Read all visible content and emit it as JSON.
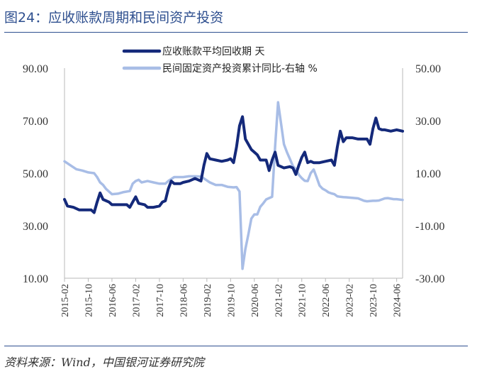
{
  "header": {
    "title": "图24：应收账款周期和民间资产投资"
  },
  "footer": {
    "source": "资料来源：Wind，中国银河证券研究院"
  },
  "chart_data": {
    "type": "line",
    "title": "图24：应收账款周期和民间资产投资",
    "x_tick_labels": [
      "2015-02",
      "2015-10",
      "2016-06",
      "2017-02",
      "2017-10",
      "2018-06",
      "2019-02",
      "2019-10",
      "2020-06",
      "2021-02",
      "2021-10",
      "2022-06",
      "2023-02",
      "2023-10",
      "2024-06"
    ],
    "x_range": [
      "2015-02",
      "2024-08"
    ],
    "y_left": {
      "ticks": [
        "90.00",
        "70.00",
        "50.00",
        "30.00",
        "10.00"
      ],
      "ylim": [
        10,
        90
      ]
    },
    "y_right": {
      "ticks": [
        "50.00",
        "30.00",
        "10.00",
        "-10.00",
        "-30.00"
      ],
      "ylim": [
        -30,
        50
      ]
    },
    "legend": [
      "应收账款平均回收期 天",
      "民间固定资产投资累计同比-右轴 %"
    ],
    "series": [
      {
        "name": "应收账款平均回收期 天",
        "axis": "left",
        "color": "#14297a",
        "points": [
          [
            "2015-02",
            40
          ],
          [
            "2015-03",
            37.5
          ],
          [
            "2015-05",
            37
          ],
          [
            "2015-07",
            36
          ],
          [
            "2015-09",
            36
          ],
          [
            "2015-11",
            36
          ],
          [
            "2015-12",
            35
          ],
          [
            "2016-01",
            39
          ],
          [
            "2016-02",
            42.5
          ],
          [
            "2016-03",
            40
          ],
          [
            "2016-05",
            39
          ],
          [
            "2016-06",
            38
          ],
          [
            "2016-08",
            38
          ],
          [
            "2016-10",
            38
          ],
          [
            "2016-11",
            38
          ],
          [
            "2016-12",
            37
          ],
          [
            "2017-01",
            39
          ],
          [
            "2017-02",
            41
          ],
          [
            "2017-03",
            38.5
          ],
          [
            "2017-05",
            38
          ],
          [
            "2017-06",
            37
          ],
          [
            "2017-08",
            37
          ],
          [
            "2017-10",
            37.5
          ],
          [
            "2017-11",
            39
          ],
          [
            "2017-12",
            39.5
          ],
          [
            "2018-01",
            44
          ],
          [
            "2018-02",
            47
          ],
          [
            "2018-03",
            46
          ],
          [
            "2018-05",
            46
          ],
          [
            "2018-06",
            46.5
          ],
          [
            "2018-08",
            47
          ],
          [
            "2018-10",
            48
          ],
          [
            "2018-12",
            47
          ],
          [
            "2019-01",
            53
          ],
          [
            "2019-02",
            57.5
          ],
          [
            "2019-03",
            55.5
          ],
          [
            "2019-05",
            55
          ],
          [
            "2019-07",
            54.5
          ],
          [
            "2019-09",
            55
          ],
          [
            "2019-10",
            55.5
          ],
          [
            "2019-11",
            54
          ],
          [
            "2019-12",
            60
          ],
          [
            "2020-01",
            68
          ],
          [
            "2020-02",
            71.5
          ],
          [
            "2020-03",
            63
          ],
          [
            "2020-05",
            59
          ],
          [
            "2020-06",
            58
          ],
          [
            "2020-07",
            57
          ],
          [
            "2020-08",
            55
          ],
          [
            "2020-10",
            55
          ],
          [
            "2020-11",
            51
          ],
          [
            "2020-12",
            55
          ],
          [
            "2021-01",
            58
          ],
          [
            "2021-02",
            53
          ],
          [
            "2021-04",
            52
          ],
          [
            "2021-06",
            52.5
          ],
          [
            "2021-07",
            52
          ],
          [
            "2021-08",
            49.5
          ],
          [
            "2021-09",
            53
          ],
          [
            "2021-10",
            56
          ],
          [
            "2021-11",
            58
          ],
          [
            "2021-12",
            54
          ],
          [
            "2022-01",
            54.5
          ],
          [
            "2022-02",
            54
          ],
          [
            "2022-04",
            54
          ],
          [
            "2022-06",
            54.5
          ],
          [
            "2022-08",
            55
          ],
          [
            "2022-09",
            53
          ],
          [
            "2022-10",
            60
          ],
          [
            "2022-11",
            66
          ],
          [
            "2022-12",
            62
          ],
          [
            "2023-01",
            63.5
          ],
          [
            "2023-03",
            63.5
          ],
          [
            "2023-05",
            63
          ],
          [
            "2023-07",
            63
          ],
          [
            "2023-08",
            63
          ],
          [
            "2023-09",
            61
          ],
          [
            "2023-10",
            67
          ],
          [
            "2023-11",
            71
          ],
          [
            "2023-12",
            67
          ],
          [
            "2024-01",
            66.5
          ],
          [
            "2024-02",
            66.5
          ],
          [
            "2024-04",
            66
          ],
          [
            "2024-06",
            66.5
          ],
          [
            "2024-08",
            66
          ]
        ]
      },
      {
        "name": "民间固定资产投资累计同比-右轴 %",
        "axis": "right",
        "color": "#a8bde6",
        "points": [
          [
            "2015-02",
            14.5
          ],
          [
            "2015-04",
            13
          ],
          [
            "2015-06",
            11.5
          ],
          [
            "2015-08",
            11
          ],
          [
            "2015-10",
            10.3
          ],
          [
            "2015-12",
            10
          ],
          [
            "2016-01",
            8.5
          ],
          [
            "2016-02",
            6.5
          ],
          [
            "2016-03",
            5.5
          ],
          [
            "2016-04",
            4
          ],
          [
            "2016-05",
            3
          ],
          [
            "2016-06",
            2
          ],
          [
            "2016-08",
            2.2
          ],
          [
            "2016-10",
            2.8
          ],
          [
            "2016-12",
            3.2
          ],
          [
            "2017-01",
            6
          ],
          [
            "2017-02",
            7
          ],
          [
            "2017-03",
            7.5
          ],
          [
            "2017-04",
            6.5
          ],
          [
            "2017-06",
            7
          ],
          [
            "2017-08",
            6.5
          ],
          [
            "2017-10",
            6
          ],
          [
            "2017-12",
            6
          ],
          [
            "2018-01",
            7
          ],
          [
            "2018-03",
            8.5
          ],
          [
            "2018-05",
            8.5
          ],
          [
            "2018-06",
            8.5
          ],
          [
            "2018-08",
            8.8
          ],
          [
            "2018-10",
            8.8
          ],
          [
            "2018-12",
            8.7
          ],
          [
            "2019-01",
            8
          ],
          [
            "2019-03",
            6.5
          ],
          [
            "2019-05",
            5.5
          ],
          [
            "2019-07",
            5.5
          ],
          [
            "2019-09",
            4.8
          ],
          [
            "2019-11",
            4.6
          ],
          [
            "2019-12",
            4.7
          ],
          [
            "2020-01",
            3
          ],
          [
            "2020-02",
            -26.4
          ],
          [
            "2020-03",
            -18.8
          ],
          [
            "2020-04",
            -13.3
          ],
          [
            "2020-05",
            -7.3
          ],
          [
            "2020-06",
            -5.7
          ],
          [
            "2020-07",
            -5.7
          ],
          [
            "2020-08",
            -2.8
          ],
          [
            "2020-09",
            -1.5
          ],
          [
            "2020-10",
            0
          ],
          [
            "2020-11",
            0.5
          ],
          [
            "2020-12",
            1
          ],
          [
            "2021-01",
            20
          ],
          [
            "2021-02",
            37
          ],
          [
            "2021-03",
            29.1
          ],
          [
            "2021-04",
            21
          ],
          [
            "2021-05",
            18
          ],
          [
            "2021-06",
            15.4
          ],
          [
            "2021-07",
            12.7
          ],
          [
            "2021-08",
            11.5
          ],
          [
            "2021-09",
            9.4
          ],
          [
            "2021-10",
            8.1
          ],
          [
            "2021-11",
            7.1
          ],
          [
            "2021-12",
            7
          ],
          [
            "2022-01",
            10
          ],
          [
            "2022-02",
            11.4
          ],
          [
            "2022-03",
            8.4
          ],
          [
            "2022-04",
            5.3
          ],
          [
            "2022-05",
            4.1
          ],
          [
            "2022-06",
            3.5
          ],
          [
            "2022-07",
            2.7
          ],
          [
            "2022-08",
            2.3
          ],
          [
            "2022-09",
            2
          ],
          [
            "2022-10",
            1.2
          ],
          [
            "2022-11",
            1
          ],
          [
            "2022-12",
            0.9
          ],
          [
            "2023-01",
            0.8
          ],
          [
            "2023-03",
            0.6
          ],
          [
            "2023-05",
            0.4
          ],
          [
            "2023-07",
            -0.5
          ],
          [
            "2023-08",
            -0.7
          ],
          [
            "2023-09",
            -0.6
          ],
          [
            "2023-10",
            -0.5
          ],
          [
            "2023-11",
            -0.5
          ],
          [
            "2023-12",
            -0.4
          ],
          [
            "2024-01",
            0
          ],
          [
            "2024-02",
            0.4
          ],
          [
            "2024-03",
            0.5
          ],
          [
            "2024-05",
            0.1
          ],
          [
            "2024-06",
            0.1
          ],
          [
            "2024-08",
            -0.2
          ]
        ]
      }
    ]
  }
}
